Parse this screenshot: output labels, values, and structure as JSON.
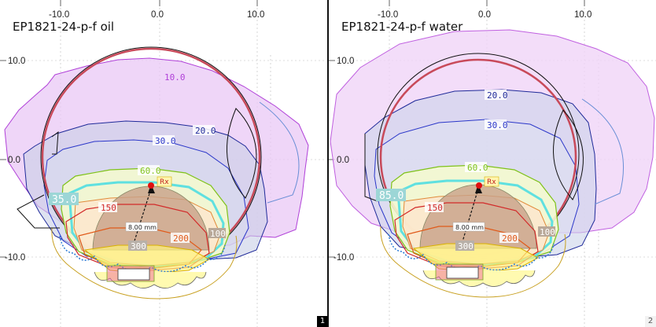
{
  "panels": [
    {
      "title": "EP1821-24-p-f oil",
      "x_ticks": [
        "-10.0",
        "0.0",
        "10.0"
      ],
      "y_ticks": [
        "10.0",
        "0.0",
        "-10.0"
      ],
      "contours": [
        "10.0",
        "20.0",
        "30.0",
        "60.0",
        "150",
        "200",
        "300",
        "100"
      ],
      "highlight_value": "35.0",
      "rx_label": "Rx",
      "distance_label": "8.00 mm"
    },
    {
      "title": "EP1821-24-p-f water",
      "x_ticks": [
        "-10.0",
        "0.0",
        "10.0"
      ],
      "y_ticks": [
        "10.0",
        "0.0",
        "-10.0"
      ],
      "contours": [
        "20.0",
        "30.0",
        "60.0",
        "150",
        "200",
        "300",
        "100"
      ],
      "highlight_value": "85.0",
      "rx_label": "Rx",
      "distance_label": "8.00 mm"
    }
  ],
  "page_badges": [
    "1",
    "2"
  ],
  "colors": {
    "contour_10": "#b040d8",
    "contour_20": "#1f2a99",
    "contour_30": "#2b37c9",
    "contour_60": "#7fc21a",
    "contour_35": "#5fe0e0",
    "contour_150": "#d22a2a",
    "contour_200": "#e05a1a",
    "contour_100": "#b48a5a",
    "contour_300": "#d9b000",
    "circle": "#c84a5a",
    "rx_marker": "#e01010"
  }
}
